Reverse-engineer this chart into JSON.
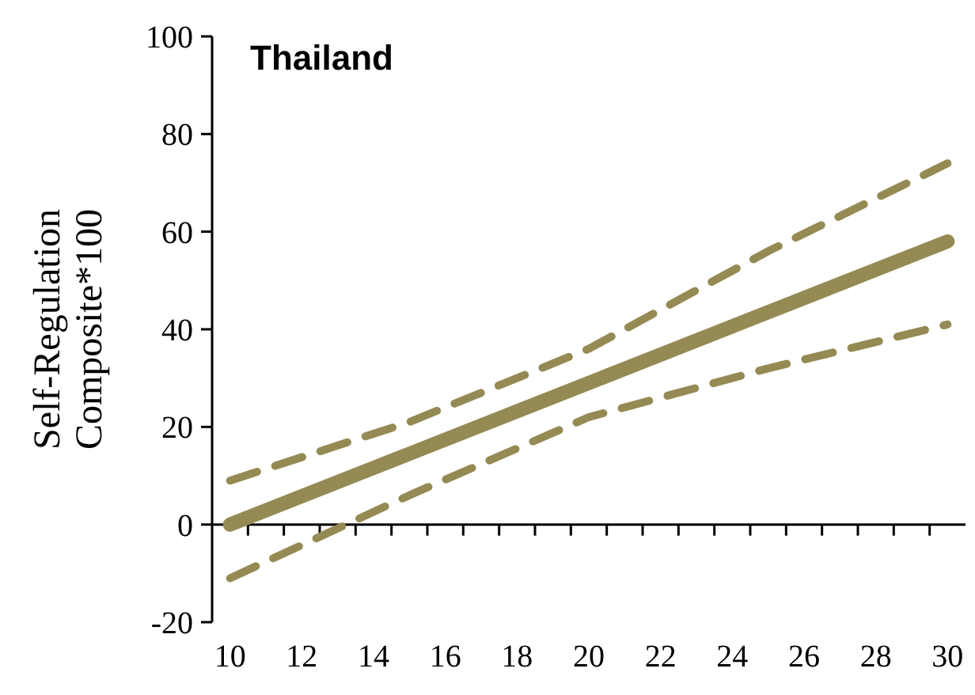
{
  "chart_data": {
    "type": "line",
    "title": "Thailand",
    "ylabel": "Self-Regulation Composite*100",
    "x": [
      10,
      15,
      20,
      25,
      30
    ],
    "series": [
      {
        "color": "#958a53",
        "values": [
          0,
          14.5,
          29,
          43.5,
          58
        ],
        "line_style": "solid"
      },
      {
        "color": "#958a53",
        "values": [
          9,
          21,
          36,
          56,
          74
        ],
        "line_style": "dashed"
      },
      {
        "color": "#958a53",
        "values": [
          -11,
          6,
          22,
          32,
          41
        ],
        "line_style": "dashed"
      }
    ],
    "xlim": [
      9.5,
      30.5
    ],
    "xticks": [
      10,
      12,
      14,
      16,
      18,
      20,
      22,
      24,
      26,
      28,
      30
    ],
    "ylim": [
      -20,
      100
    ],
    "yticks": [
      -20,
      0,
      20,
      40,
      60,
      80,
      100
    ],
    "marker": "none"
  }
}
